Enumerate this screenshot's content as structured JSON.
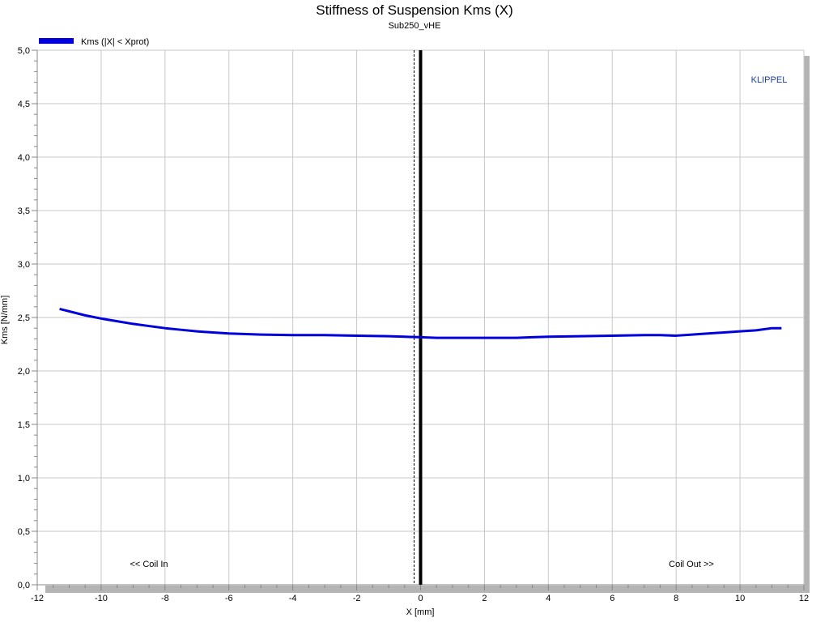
{
  "chart_data": {
    "type": "line",
    "title": "Stiffness of Suspension Kms (X)",
    "subtitle": "Sub250_vHE",
    "xlabel": "X [mm]",
    "ylabel": "Kms [N/mm]",
    "xlim": [
      -12,
      12
    ],
    "ylim": [
      0,
      5
    ],
    "x_ticks": [
      -12,
      -10,
      -8,
      -6,
      -4,
      -2,
      0,
      2,
      4,
      6,
      8,
      10,
      12
    ],
    "x_tick_labels": [
      "-12",
      "-10",
      "-8",
      "-6",
      "-4",
      "-2",
      "0",
      "2",
      "4",
      "6",
      "8",
      "10",
      "12"
    ],
    "y_ticks": [
      0,
      0.5,
      1,
      1.5,
      2,
      2.5,
      3,
      3.5,
      4,
      4.5,
      5
    ],
    "y_tick_labels": [
      "0,0",
      "0,5",
      "1,0",
      "1,5",
      "2,0",
      "2,5",
      "3,0",
      "3,5",
      "4,0",
      "4,5",
      "5,0"
    ],
    "grid": true,
    "legend_position": "top-left",
    "series": [
      {
        "name": "Kms (|X| < Xprot)",
        "color": "#0000dd",
        "x": [
          -11.3,
          -10.5,
          -10.0,
          -9.5,
          -9.0,
          -8.5,
          -8.0,
          -7.5,
          -7.0,
          -6.5,
          -6.0,
          -5.0,
          -4.0,
          -3.0,
          -2.0,
          -1.0,
          -0.5,
          0.0,
          0.5,
          1.0,
          2.0,
          3.0,
          3.5,
          4.0,
          5.0,
          6.0,
          7.0,
          7.5,
          8.0,
          8.5,
          9.0,
          9.5,
          10.0,
          10.5,
          11.0,
          11.3
        ],
        "y": [
          2.58,
          2.52,
          2.49,
          2.465,
          2.44,
          2.42,
          2.4,
          2.385,
          2.37,
          2.36,
          2.35,
          2.34,
          2.335,
          2.335,
          2.33,
          2.325,
          2.32,
          2.315,
          2.31,
          2.31,
          2.31,
          2.31,
          2.315,
          2.32,
          2.325,
          2.33,
          2.335,
          2.335,
          2.33,
          2.34,
          2.35,
          2.36,
          2.37,
          2.38,
          2.4,
          2.4
        ]
      }
    ],
    "reference_lines": [
      {
        "x": 0,
        "style": "solid",
        "color": "#000000"
      },
      {
        "x": -0.1,
        "style": "dashed",
        "color": "#000000"
      }
    ],
    "annotations": {
      "coil_in": "<< Coil In",
      "coil_out": "Coil Out >>",
      "brand": "KLIPPEL"
    }
  },
  "colors": {
    "grid": "#c8c8c8",
    "axis": "#777777",
    "brand": "#1c3f9c",
    "frame_shadow": "#b4b4b4"
  }
}
